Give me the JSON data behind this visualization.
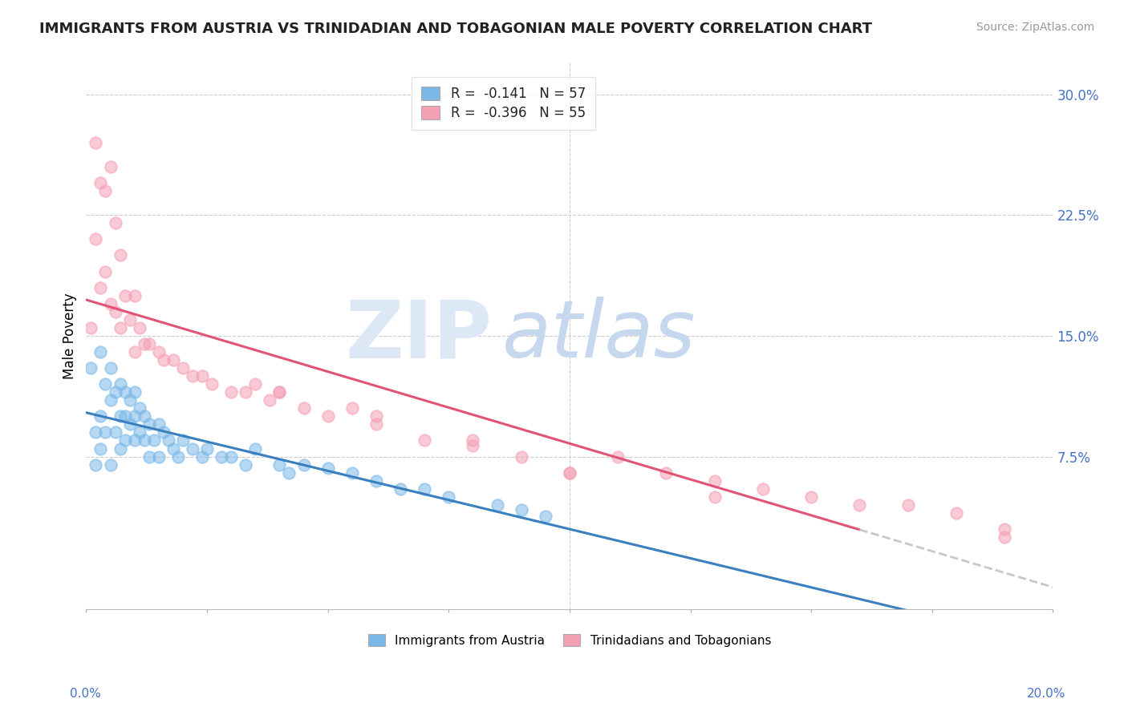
{
  "title": "IMMIGRANTS FROM AUSTRIA VS TRINIDADIAN AND TOBAGONIAN MALE POVERTY CORRELATION CHART",
  "source": "Source: ZipAtlas.com",
  "ylabel": "Male Poverty",
  "y_ticks": [
    0.075,
    0.15,
    0.225,
    0.3
  ],
  "y_tick_labels": [
    "7.5%",
    "15.0%",
    "22.5%",
    "30.0%"
  ],
  "x_lim": [
    0.0,
    0.2
  ],
  "y_lim": [
    -0.02,
    0.32
  ],
  "legend1_label": "R =  -0.141   N = 57",
  "legend2_label": "R =  -0.396   N = 55",
  "bottom_legend1": "Immigrants from Austria",
  "bottom_legend2": "Trinidadians and Tobagonians",
  "color_blue": "#7ab8e8",
  "color_pink": "#f4a0b5",
  "watermark_zip_color": "#dce8f5",
  "watermark_atlas_color": "#c5d8ee",
  "austria_x": [
    0.001,
    0.002,
    0.002,
    0.003,
    0.003,
    0.003,
    0.004,
    0.004,
    0.005,
    0.005,
    0.005,
    0.006,
    0.006,
    0.007,
    0.007,
    0.007,
    0.008,
    0.008,
    0.008,
    0.009,
    0.009,
    0.01,
    0.01,
    0.01,
    0.011,
    0.011,
    0.012,
    0.012,
    0.013,
    0.013,
    0.014,
    0.015,
    0.015,
    0.016,
    0.017,
    0.018,
    0.019,
    0.02,
    0.022,
    0.024,
    0.025,
    0.028,
    0.03,
    0.033,
    0.035,
    0.04,
    0.042,
    0.045,
    0.05,
    0.055,
    0.06,
    0.065,
    0.07,
    0.075,
    0.085,
    0.09,
    0.095
  ],
  "austria_y": [
    0.13,
    0.09,
    0.07,
    0.14,
    0.1,
    0.08,
    0.12,
    0.09,
    0.13,
    0.11,
    0.07,
    0.115,
    0.09,
    0.12,
    0.1,
    0.08,
    0.115,
    0.1,
    0.085,
    0.11,
    0.095,
    0.115,
    0.1,
    0.085,
    0.105,
    0.09,
    0.1,
    0.085,
    0.095,
    0.075,
    0.085,
    0.095,
    0.075,
    0.09,
    0.085,
    0.08,
    0.075,
    0.085,
    0.08,
    0.075,
    0.08,
    0.075,
    0.075,
    0.07,
    0.08,
    0.07,
    0.065,
    0.07,
    0.068,
    0.065,
    0.06,
    0.055,
    0.055,
    0.05,
    0.045,
    0.042,
    0.038
  ],
  "trinidad_x": [
    0.001,
    0.002,
    0.002,
    0.003,
    0.003,
    0.004,
    0.004,
    0.005,
    0.005,
    0.006,
    0.006,
    0.007,
    0.007,
    0.008,
    0.009,
    0.01,
    0.01,
    0.011,
    0.012,
    0.013,
    0.015,
    0.016,
    0.018,
    0.02,
    0.022,
    0.024,
    0.026,
    0.03,
    0.033,
    0.035,
    0.038,
    0.04,
    0.045,
    0.05,
    0.055,
    0.06,
    0.07,
    0.08,
    0.09,
    0.1,
    0.11,
    0.12,
    0.13,
    0.14,
    0.15,
    0.16,
    0.17,
    0.18,
    0.19,
    0.04,
    0.06,
    0.08,
    0.1,
    0.13,
    0.19
  ],
  "trinidad_y": [
    0.155,
    0.27,
    0.21,
    0.245,
    0.18,
    0.24,
    0.19,
    0.255,
    0.17,
    0.22,
    0.165,
    0.2,
    0.155,
    0.175,
    0.16,
    0.175,
    0.14,
    0.155,
    0.145,
    0.145,
    0.14,
    0.135,
    0.135,
    0.13,
    0.125,
    0.125,
    0.12,
    0.115,
    0.115,
    0.12,
    0.11,
    0.115,
    0.105,
    0.1,
    0.105,
    0.1,
    0.085,
    0.082,
    0.075,
    0.065,
    0.075,
    0.065,
    0.06,
    0.055,
    0.05,
    0.045,
    0.045,
    0.04,
    0.03,
    0.115,
    0.095,
    0.085,
    0.065,
    0.05,
    0.025
  ]
}
